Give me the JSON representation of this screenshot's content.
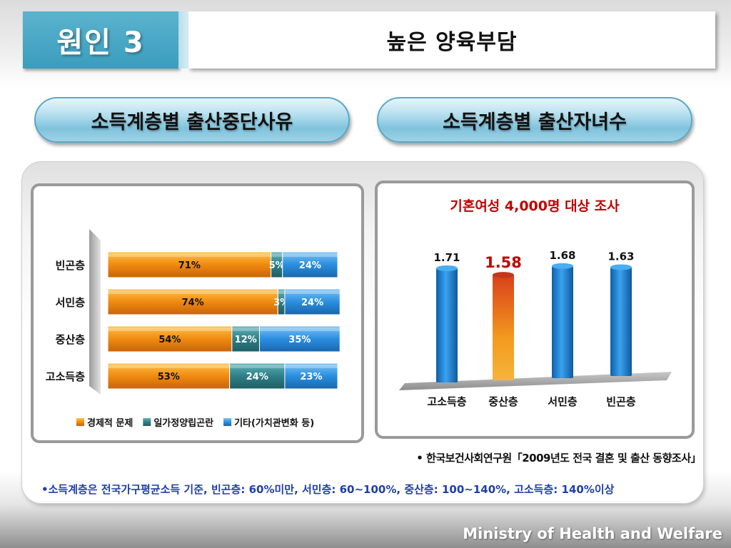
{
  "header": {
    "number_label": "원인 3",
    "title": "높은 양육부담"
  },
  "pills": {
    "left": "소득계층별 출산중단사유",
    "right": "소득계층별 출산자녀수"
  },
  "colors": {
    "economic": "#f18a12",
    "worklife": "#2e7f86",
    "other": "#2a8ee0",
    "blue_bar": "#1f87d6",
    "highlight_bar": "#e66a12",
    "highlight_label": "#c00000",
    "subtitle": "#c00000",
    "footnote": "#1f3fa6"
  },
  "chart_data": [
    {
      "type": "bar",
      "orientation": "horizontal",
      "stacked": true,
      "categories": [
        "빈곤층",
        "서민층",
        "중산층",
        "고소득층"
      ],
      "series": [
        {
          "name": "경제적 문제",
          "values": [
            71,
            74,
            54,
            53
          ],
          "labels": [
            "71%",
            "74%",
            "54%",
            "53%"
          ]
        },
        {
          "name": "일가정양립곤란",
          "values": [
            5,
            3,
            12,
            24
          ],
          "labels": [
            "5%",
            "3%",
            "12%",
            "24%"
          ]
        },
        {
          "name": "기타(가치관변화 등)",
          "values": [
            24,
            24,
            35,
            23
          ],
          "labels": [
            "24%",
            "24%",
            "35%",
            "23%"
          ]
        }
      ],
      "legend": "bottom"
    },
    {
      "type": "bar",
      "orientation": "vertical",
      "title": "기혼여성 4,000명 대상 조사",
      "categories": [
        "고소득층",
        "중산층",
        "서민층",
        "빈곤층"
      ],
      "values": [
        1.71,
        1.58,
        1.68,
        1.63
      ],
      "labels": [
        "1.71",
        "1.58",
        "1.68",
        "1.63"
      ],
      "highlight_index": 1
    }
  ],
  "source": "• 한국보건사회연구원「2009년도 전국 결혼 및 출산 동향조사」",
  "footnote": "•소득계층은 전국가구평균소득 기준, 빈곤층: 60%미만, 서민층: 60~100%, 중산층: 100~140%, 고소득층: 140%이상",
  "brand": "Ministry of Health and Welfare"
}
